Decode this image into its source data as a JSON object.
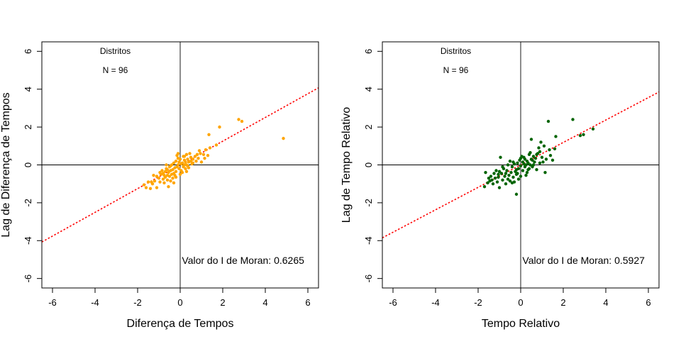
{
  "chart_data": [
    {
      "type": "scatter",
      "xlabel": "Diferença de Tempos",
      "ylabel": "Lag de Diferença de Tempos",
      "xlim": [
        -6.5,
        6.5
      ],
      "ylim": [
        -6.5,
        6.5
      ],
      "xticks": [
        "-6",
        "-4",
        "-2",
        "0",
        "2",
        "4",
        "6"
      ],
      "yticks": [
        "-6",
        "-4",
        "-2",
        "0",
        "2",
        "4",
        "6"
      ],
      "annotations": {
        "region": "Distritos",
        "n": "N = 96",
        "moran": "Valor do I de Moran: 0.6265"
      },
      "point_color": "#FFA500",
      "line_color": "#FF0000",
      "regression": {
        "slope": 0.6265,
        "intercept": 0
      },
      "points": [
        [
          -1.7,
          -1.05
        ],
        [
          -1.6,
          -1.2
        ],
        [
          -1.5,
          -0.9
        ],
        [
          -1.4,
          -1.25
        ],
        [
          -1.3,
          -1.0
        ],
        [
          -1.25,
          -0.55
        ],
        [
          -1.2,
          -0.85
        ],
        [
          -1.1,
          -0.6
        ],
        [
          -1.1,
          -1.2
        ],
        [
          -1.0,
          -0.7
        ],
        [
          -0.95,
          -0.9
        ],
        [
          -0.9,
          -0.5
        ],
        [
          -0.85,
          -0.3
        ],
        [
          -0.8,
          -0.45
        ],
        [
          -0.8,
          -0.75
        ],
        [
          -0.75,
          -0.95
        ],
        [
          -0.7,
          -0.35
        ],
        [
          -0.7,
          -0.65
        ],
        [
          -0.65,
          -0.2
        ],
        [
          -0.6,
          -0.55
        ],
        [
          -0.6,
          -0.8
        ],
        [
          -0.55,
          -0.4
        ],
        [
          -0.55,
          -1.15
        ],
        [
          -0.5,
          -0.1
        ],
        [
          -0.5,
          -0.6
        ],
        [
          -0.45,
          -0.3
        ],
        [
          -0.45,
          -0.85
        ],
        [
          -0.4,
          -0.5
        ],
        [
          -0.4,
          0.0
        ],
        [
          -0.35,
          -0.25
        ],
        [
          -0.35,
          -0.7
        ],
        [
          -0.3,
          0.1
        ],
        [
          -0.3,
          -0.45
        ],
        [
          -0.25,
          -0.15
        ],
        [
          -0.25,
          -0.55
        ],
        [
          -0.2,
          0.2
        ],
        [
          -0.2,
          -0.35
        ],
        [
          -0.15,
          0.5
        ],
        [
          -0.15,
          -0.1
        ],
        [
          -0.1,
          0.0
        ],
        [
          -0.1,
          0.6
        ],
        [
          -0.05,
          -0.2
        ],
        [
          0.0,
          -0.5
        ],
        [
          0.0,
          0.3
        ],
        [
          0.05,
          0.05
        ],
        [
          0.05,
          -0.3
        ],
        [
          0.1,
          0.1
        ],
        [
          0.15,
          -0.1
        ],
        [
          0.15,
          0.45
        ],
        [
          0.2,
          0.0
        ],
        [
          0.2,
          0.25
        ],
        [
          0.25,
          -0.2
        ],
        [
          0.25,
          0.15
        ],
        [
          0.3,
          0.0
        ],
        [
          0.3,
          0.55
        ],
        [
          0.35,
          0.3
        ],
        [
          0.35,
          -0.05
        ],
        [
          0.4,
          0.15
        ],
        [
          0.45,
          0.6
        ],
        [
          0.5,
          0.2
        ],
        [
          0.5,
          0.4
        ],
        [
          0.6,
          0.1
        ],
        [
          0.7,
          0.45
        ],
        [
          0.8,
          0.55
        ],
        [
          0.85,
          0.35
        ],
        [
          0.95,
          0.6
        ],
        [
          1.0,
          0.15
        ],
        [
          1.1,
          0.55
        ],
        [
          1.2,
          0.8
        ],
        [
          1.3,
          0.5
        ],
        [
          1.35,
          1.6
        ],
        [
          1.4,
          0.9
        ],
        [
          1.7,
          1.05
        ],
        [
          1.85,
          2.0
        ],
        [
          2.75,
          2.4
        ],
        [
          2.9,
          2.3
        ],
        [
          4.85,
          1.4
        ],
        [
          -0.65,
          0.0
        ],
        [
          -0.1,
          0.35
        ],
        [
          0.6,
          0.3
        ],
        [
          -0.95,
          -0.4
        ],
        [
          0.4,
          -0.15
        ],
        [
          -0.3,
          -0.95
        ],
        [
          0.1,
          -0.4
        ],
        [
          0.75,
          0.2
        ],
        [
          -1.35,
          -0.9
        ],
        [
          -0.05,
          0.15
        ],
        [
          0.55,
          0.05
        ],
        [
          -0.2,
          -0.65
        ],
        [
          0.3,
          -0.35
        ],
        [
          1.15,
          0.35
        ],
        [
          -0.6,
          -0.25
        ],
        [
          0.9,
          0.75
        ],
        [
          -0.45,
          -0.05
        ],
        [
          0.2,
          0.45
        ],
        [
          -0.75,
          -0.55
        ]
      ]
    },
    {
      "type": "scatter",
      "xlabel": "Tempo Relativo",
      "ylabel": "Lag de Tempo Relativo",
      "xlim": [
        -6.5,
        6.5
      ],
      "ylim": [
        -6.5,
        6.5
      ],
      "xticks": [
        "-6",
        "-4",
        "-2",
        "0",
        "2",
        "4",
        "6"
      ],
      "yticks": [
        "-6",
        "-4",
        "-2",
        "0",
        "2",
        "4",
        "6"
      ],
      "annotations": {
        "region": "Distritos",
        "n": "N = 96",
        "moran": "Valor do I de Moran: 0.5927"
      },
      "point_color": "#006400",
      "line_color": "#FF0000",
      "regression": {
        "slope": 0.5927,
        "intercept": 0
      },
      "points": [
        [
          -1.7,
          -1.15
        ],
        [
          -1.65,
          -0.4
        ],
        [
          -1.55,
          -0.95
        ],
        [
          -1.45,
          -0.85
        ],
        [
          -1.4,
          -0.6
        ],
        [
          -1.35,
          -0.8
        ],
        [
          -1.3,
          -1.0
        ],
        [
          -1.2,
          -0.7
        ],
        [
          -1.15,
          -0.3
        ],
        [
          -1.1,
          -0.9
        ],
        [
          -1.05,
          -0.5
        ],
        [
          -1.0,
          -0.35
        ],
        [
          -1.0,
          -1.2
        ],
        [
          -0.95,
          0.4
        ],
        [
          -0.9,
          -0.45
        ],
        [
          -0.85,
          -0.8
        ],
        [
          -0.8,
          -0.2
        ],
        [
          -0.75,
          -0.6
        ],
        [
          -0.7,
          -1.0
        ],
        [
          -0.65,
          -0.3
        ],
        [
          -0.6,
          0.0
        ],
        [
          -0.55,
          -0.55
        ],
        [
          -0.5,
          -0.85
        ],
        [
          -0.5,
          0.2
        ],
        [
          -0.45,
          -0.4
        ],
        [
          -0.4,
          -0.1
        ],
        [
          -0.35,
          -0.65
        ],
        [
          -0.3,
          0.05
        ],
        [
          -0.3,
          -0.9
        ],
        [
          -0.25,
          -0.35
        ],
        [
          -0.2,
          -1.55
        ],
        [
          -0.2,
          -0.5
        ],
        [
          -0.15,
          0.1
        ],
        [
          -0.1,
          -0.2
        ],
        [
          -0.1,
          -0.75
        ],
        [
          -0.05,
          0.25
        ],
        [
          0.0,
          -0.05
        ],
        [
          0.0,
          -0.6
        ],
        [
          0.05,
          0.45
        ],
        [
          0.1,
          -0.3
        ],
        [
          0.1,
          0.15
        ],
        [
          0.15,
          0.4
        ],
        [
          0.2,
          -0.1
        ],
        [
          0.2,
          0.3
        ],
        [
          0.25,
          0.0
        ],
        [
          0.3,
          -0.4
        ],
        [
          0.3,
          0.2
        ],
        [
          0.35,
          0.1
        ],
        [
          0.4,
          -0.2
        ],
        [
          0.4,
          0.55
        ],
        [
          0.45,
          0.0
        ],
        [
          0.5,
          0.3
        ],
        [
          0.5,
          1.35
        ],
        [
          0.55,
          -0.1
        ],
        [
          0.6,
          0.45
        ],
        [
          0.65,
          0.15
        ],
        [
          0.7,
          0.35
        ],
        [
          0.75,
          -0.25
        ],
        [
          0.8,
          0.6
        ],
        [
          0.85,
          0.9
        ],
        [
          0.9,
          0.1
        ],
        [
          0.95,
          1.2
        ],
        [
          1.0,
          0.4
        ],
        [
          1.1,
          1.0
        ],
        [
          1.15,
          -0.4
        ],
        [
          1.2,
          0.3
        ],
        [
          1.3,
          2.3
        ],
        [
          1.35,
          0.8
        ],
        [
          1.4,
          0.5
        ],
        [
          1.5,
          0.25
        ],
        [
          1.6,
          0.85
        ],
        [
          1.65,
          1.5
        ],
        [
          2.45,
          2.4
        ],
        [
          2.8,
          1.55
        ],
        [
          2.95,
          1.6
        ],
        [
          3.4,
          1.9
        ],
        [
          -1.25,
          -0.45
        ],
        [
          -0.6,
          -0.75
        ],
        [
          0.0,
          0.35
        ],
        [
          0.6,
          0.0
        ],
        [
          -0.85,
          -0.1
        ],
        [
          0.25,
          -0.55
        ],
        [
          -0.4,
          -0.95
        ],
        [
          0.75,
          0.55
        ],
        [
          -1.5,
          -0.7
        ],
        [
          0.15,
          0.05
        ],
        [
          -0.2,
          -0.25
        ],
        [
          0.45,
          0.65
        ],
        [
          -0.7,
          -0.45
        ],
        [
          1.05,
          0.15
        ],
        [
          -0.35,
          0.15
        ],
        [
          0.35,
          -0.25
        ],
        [
          -1.05,
          -0.65
        ],
        [
          0.9,
          0.7
        ],
        [
          -0.15,
          -0.45
        ],
        [
          0.55,
          0.25
        ]
      ]
    }
  ]
}
